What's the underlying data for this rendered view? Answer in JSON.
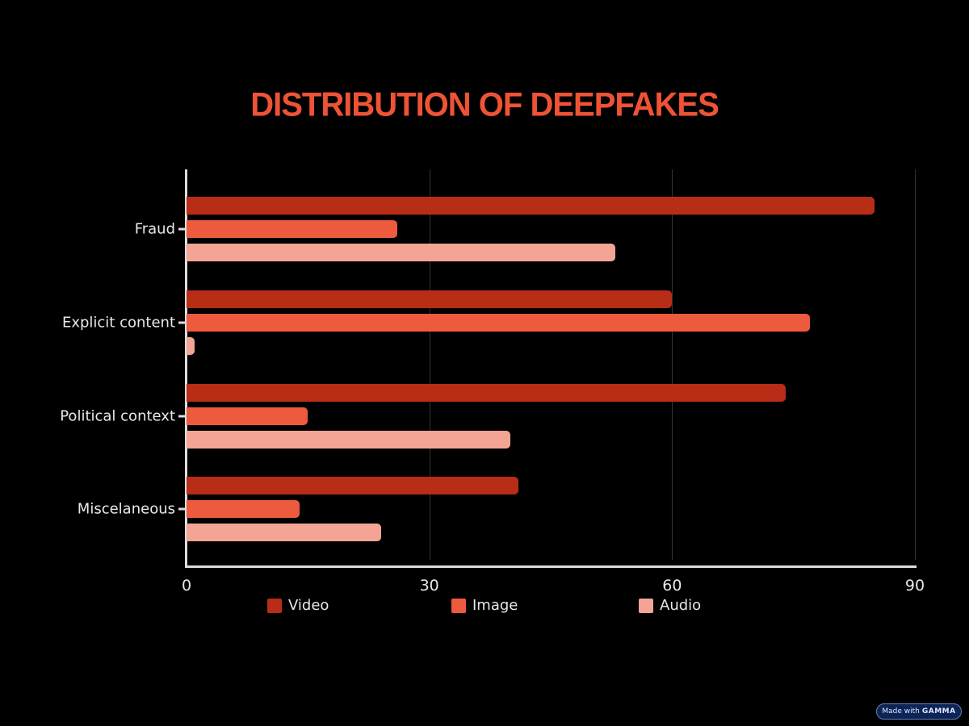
{
  "title": "DISTRIBUTION OF DEEPFAKES",
  "badge": {
    "prefix": "Made with",
    "brand": "GAMMA"
  },
  "chart_data": {
    "type": "bar",
    "orientation": "horizontal",
    "title": "DISTRIBUTION OF DEEPFAKES",
    "xlabel": "",
    "ylabel": "",
    "categories": [
      "Fraud",
      "Explicit content",
      "Political context",
      "Miscelaneous"
    ],
    "series": [
      {
        "name": "Video",
        "color": "#b82d15",
        "values": [
          85,
          60,
          74,
          41
        ]
      },
      {
        "name": "Image",
        "color": "#ee5a3e",
        "values": [
          26,
          77,
          15,
          14
        ]
      },
      {
        "name": "Audio",
        "color": "#f4a494",
        "values": [
          53,
          1,
          40,
          24
        ]
      }
    ],
    "xlim": [
      0,
      90
    ],
    "xticks": [
      "0",
      "30",
      "60",
      "90"
    ],
    "grid": true,
    "legend_position": "bottom"
  }
}
